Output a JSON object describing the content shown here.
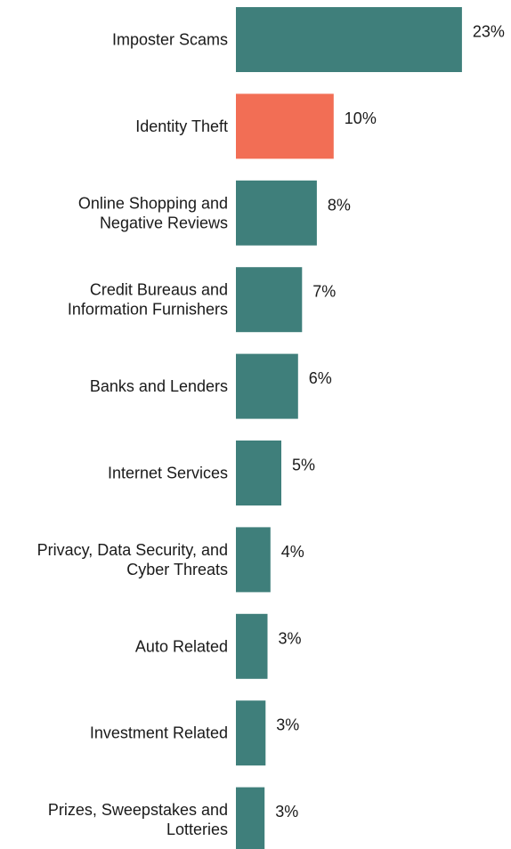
{
  "chart_data": {
    "type": "bar",
    "orientation": "horizontal",
    "categories": [
      [
        "Imposter Scams"
      ],
      [
        "Identity Theft"
      ],
      [
        "Online Shopping and",
        "Negative Reviews"
      ],
      [
        "Credit Bureaus and",
        "Information Furnishers"
      ],
      [
        "Banks and Lenders"
      ],
      [
        "Internet Services"
      ],
      [
        "Privacy, Data Security, and",
        "Cyber Threats"
      ],
      [
        "Auto Related"
      ],
      [
        "Investment Related"
      ],
      [
        "Prizes, Sweepstakes and",
        "Lotteries"
      ]
    ],
    "values": [
      23,
      10,
      8,
      7,
      6,
      5,
      4,
      3,
      3,
      3
    ],
    "value_labels": [
      "23%",
      "10%",
      "8%",
      "7%",
      "6%",
      "5%",
      "4%",
      "3%",
      "3%",
      "3%"
    ],
    "bar_values_precise": [
      22.9,
      9.9,
      8.2,
      6.7,
      6.3,
      4.6,
      3.5,
      3.2,
      3.0,
      2.9
    ],
    "highlight_index": 1,
    "colors": {
      "default": "#3f7f7b",
      "highlight": "#f26e55"
    },
    "xlim": [
      0,
      23
    ],
    "grid": false,
    "legend": "none"
  }
}
